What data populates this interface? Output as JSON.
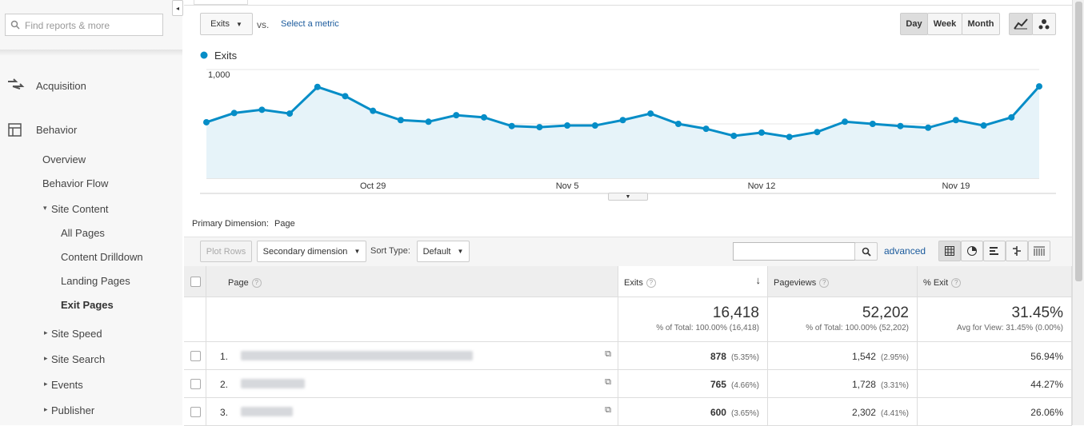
{
  "search_placeholder": "Find reports & more",
  "nav": {
    "sections": [
      "Acquisition",
      "Behavior"
    ],
    "items": [
      "Overview",
      "Behavior Flow",
      "Site Content",
      "All Pages",
      "Content Drilldown",
      "Landing Pages",
      "Exit Pages",
      "Site Speed",
      "Site Search",
      "Events",
      "Publisher"
    ]
  },
  "toolbar": {
    "metric": "Exits",
    "vs": "vs.",
    "select_metric": "Select a metric",
    "periods": [
      "Day",
      "Week",
      "Month"
    ]
  },
  "chart_data": {
    "type": "line",
    "categories": [
      null,
      null,
      null,
      null,
      null,
      null,
      "Oct 29",
      null,
      null,
      null,
      null,
      null,
      null,
      "Nov 5",
      null,
      null,
      null,
      null,
      null,
      null,
      "Nov 12",
      null,
      null,
      null,
      null,
      null,
      null,
      "Nov 19",
      null,
      null,
      null
    ],
    "series": [
      {
        "name": "Exits",
        "color": "#058dc7",
        "values": [
          515,
          600,
          630,
          595,
          840,
          755,
          620,
          535,
          520,
          580,
          560,
          480,
          470,
          485,
          485,
          535,
          595,
          500,
          455,
          390,
          420,
          380,
          425,
          520,
          500,
          480,
          465,
          535,
          485,
          560,
          845
        ]
      }
    ],
    "ylim": [
      0,
      1000
    ],
    "yticks": [
      500,
      {
        "value": 1000,
        "label": "1,000"
      }
    ],
    "grid": true
  },
  "dimension": {
    "label": "Primary Dimension:",
    "value": "Page"
  },
  "table_controls": {
    "plot_rows": "Plot Rows",
    "secondary": "Secondary dimension",
    "sort_label": "Sort Type:",
    "sort": "Default",
    "advanced": "advanced"
  },
  "table": {
    "columns": [
      "Page",
      "Exits",
      "Pageviews",
      "% Exit"
    ],
    "totals": [
      {
        "value": "16,418",
        "note": "% of Total: 100.00% (16,418)"
      },
      {
        "value": "52,202",
        "note": "% of Total: 100.00% (52,202)"
      },
      {
        "value": "31.45%",
        "note": "Avg for View: 31.45% (0.00%)"
      }
    ],
    "rows": [
      [
        "1.",
        "878",
        "(5.35%)",
        "1,542",
        "(2.95%)",
        "56.94%"
      ],
      [
        "2.",
        "765",
        "(4.66%)",
        "1,728",
        "(3.31%)",
        "44.27%"
      ],
      [
        "3.",
        "600",
        "(3.65%)",
        "2,302",
        "(4.41%)",
        "26.06%"
      ]
    ]
  }
}
